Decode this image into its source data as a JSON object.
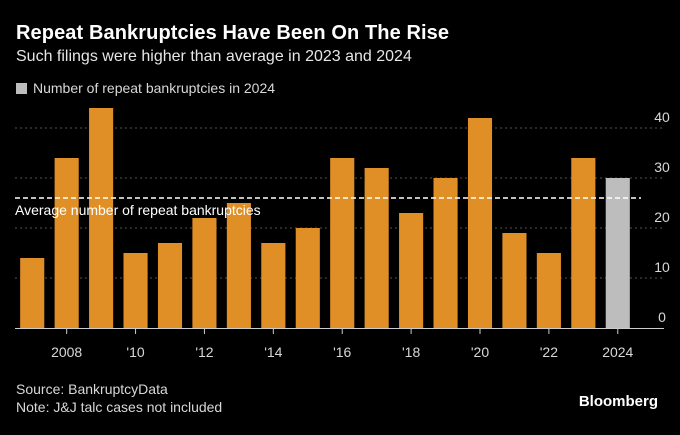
{
  "header": {
    "title": "Repeat Bankruptcies Have Been On The Rise",
    "subtitle": "Such filings were higher than average in 2023 and 2024"
  },
  "legend": {
    "label": "Number of repeat bankruptcies in 2024",
    "color": "#bdbdbd"
  },
  "footer": {
    "source": "Source: BankruptcyData",
    "note": "Note: J&J talc cases not included",
    "logo": "Bloomberg"
  },
  "colors": {
    "bar": "#e08f26",
    "highlight": "#bdbdbd",
    "grid": "#555555",
    "average_line": "#ffffff"
  },
  "chart_data": {
    "type": "bar",
    "title": "Repeat Bankruptcies Have Been On The Rise",
    "categories": [
      "2007",
      "2008",
      "2009",
      "2010",
      "2011",
      "2012",
      "2013",
      "2014",
      "2015",
      "2016",
      "2017",
      "2018",
      "2019",
      "2020",
      "2021",
      "2022",
      "2023",
      "2024"
    ],
    "values": [
      14,
      34,
      44,
      15,
      17,
      22,
      25,
      17,
      20,
      34,
      32,
      23,
      30,
      42,
      19,
      15,
      34,
      30
    ],
    "highlight_category": "2024",
    "x_tick_labels": [
      {
        "category": "2008",
        "label": "2008"
      },
      {
        "category": "2010",
        "label": "'10"
      },
      {
        "category": "2012",
        "label": "'12"
      },
      {
        "category": "2014",
        "label": "'14"
      },
      {
        "category": "2016",
        "label": "'16"
      },
      {
        "category": "2018",
        "label": "'18"
      },
      {
        "category": "2020",
        "label": "'20"
      },
      {
        "category": "2022",
        "label": "'22"
      },
      {
        "category": "2024",
        "label": "2024"
      }
    ],
    "y_ticks": [
      0,
      10,
      20,
      30,
      40
    ],
    "ylim": [
      0,
      45
    ],
    "average": {
      "value": 26,
      "label": "Average number of repeat bankruptcies"
    },
    "grid": true,
    "y_axis_side": "right"
  }
}
